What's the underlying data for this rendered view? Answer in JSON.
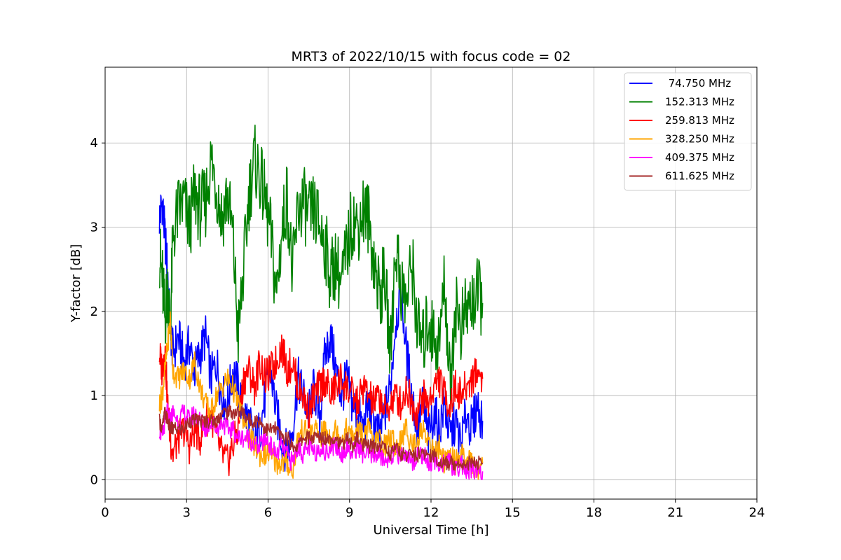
{
  "chart_data": {
    "type": "line",
    "title": "MRT3 of 2022/10/15 with focus code = 02",
    "xlabel": "Universal Time [h]",
    "ylabel": "Y-factor [dB]",
    "xlim": [
      0,
      24
    ],
    "ylim": [
      -0.23,
      4.9
    ],
    "xticks": [
      0,
      3,
      6,
      9,
      12,
      15,
      18,
      21,
      24
    ],
    "yticks": [
      0,
      1,
      2,
      3,
      4
    ],
    "grid": true,
    "legend_position": "top-right",
    "series": [
      {
        "name": " 74.750 MHz",
        "color": "#0000ff",
        "x": [
          2.0,
          2.1,
          2.2,
          2.3,
          2.4,
          2.5,
          2.7,
          2.9,
          3.1,
          3.3,
          3.5,
          3.7,
          3.9,
          4.1,
          4.3,
          4.5,
          4.7,
          4.9,
          5.1,
          5.3,
          5.5,
          5.7,
          5.9,
          6.1,
          6.3,
          6.5,
          6.7,
          6.9,
          7.1,
          7.3,
          7.5,
          7.7,
          7.9,
          8.1,
          8.3,
          8.5,
          8.7,
          8.9,
          9.1,
          9.3,
          9.5,
          9.7,
          9.9,
          10.1,
          10.3,
          10.5,
          10.7,
          10.9,
          11.1,
          11.3,
          11.5,
          11.7,
          11.9,
          12.1,
          12.3,
          12.5,
          12.7,
          12.9,
          13.1,
          13.3,
          13.5,
          13.7,
          13.9
        ],
        "y": [
          3.1,
          3.3,
          2.9,
          2.5,
          1.8,
          1.5,
          1.7,
          1.4,
          1.6,
          1.3,
          1.5,
          1.7,
          1.2,
          1.4,
          1.0,
          0.9,
          1.3,
          1.1,
          0.8,
          0.7,
          0.4,
          0.6,
          1.0,
          1.3,
          0.8,
          0.5,
          0.3,
          0.6,
          1.2,
          1.0,
          0.8,
          1.1,
          0.7,
          1.5,
          1.7,
          1.3,
          1.0,
          1.2,
          0.9,
          0.8,
          0.6,
          0.9,
          0.7,
          0.5,
          0.8,
          1.1,
          1.9,
          2.2,
          1.5,
          1.0,
          0.6,
          0.9,
          0.5,
          0.8,
          0.6,
          0.9,
          0.5,
          0.7,
          0.4,
          0.8,
          0.6,
          0.9,
          0.7
        ]
      },
      {
        "name": "152.313 MHz",
        "color": "#008000",
        "x": [
          2.0,
          2.1,
          2.2,
          2.3,
          2.4,
          2.5,
          2.7,
          2.9,
          3.1,
          3.3,
          3.5,
          3.7,
          3.9,
          4.1,
          4.3,
          4.5,
          4.7,
          4.9,
          5.1,
          5.3,
          5.5,
          5.7,
          5.9,
          6.1,
          6.3,
          6.5,
          6.7,
          6.9,
          7.1,
          7.3,
          7.5,
          7.7,
          7.9,
          8.1,
          8.3,
          8.5,
          8.7,
          8.9,
          9.1,
          9.3,
          9.5,
          9.7,
          9.9,
          10.1,
          10.3,
          10.5,
          10.7,
          10.9,
          11.1,
          11.3,
          11.5,
          11.7,
          11.9,
          12.1,
          12.3,
          12.5,
          12.7,
          12.9,
          13.1,
          13.3,
          13.5,
          13.7,
          13.9
        ],
        "y": [
          2.7,
          2.4,
          1.9,
          2.3,
          1.8,
          2.9,
          3.2,
          3.3,
          3.0,
          3.4,
          3.2,
          3.3,
          3.8,
          3.5,
          3.1,
          3.4,
          2.9,
          1.7,
          2.5,
          3.4,
          3.8,
          3.6,
          3.3,
          2.9,
          2.2,
          2.9,
          3.4,
          2.4,
          3.2,
          3.3,
          3.1,
          3.2,
          3.0,
          2.8,
          2.4,
          2.6,
          2.3,
          2.7,
          3.1,
          3.0,
          3.2,
          3.1,
          2.6,
          2.2,
          2.4,
          1.5,
          2.8,
          2.3,
          2.1,
          2.6,
          1.8,
          1.6,
          1.9,
          1.7,
          1.6,
          2.4,
          1.1,
          2.1,
          1.8,
          2.0,
          2.1,
          2.2,
          2.1
        ]
      },
      {
        "name": "259.813 MHz",
        "color": "#ff0000",
        "x": [
          2.0,
          2.1,
          2.2,
          2.3,
          2.4,
          2.5,
          2.7,
          2.9,
          3.1,
          3.3,
          3.5,
          3.7,
          3.9,
          4.1,
          4.3,
          4.5,
          4.7,
          4.9,
          5.1,
          5.3,
          5.5,
          5.7,
          5.9,
          6.1,
          6.3,
          6.5,
          6.7,
          6.9,
          7.1,
          7.3,
          7.5,
          7.7,
          7.9,
          8.1,
          8.3,
          8.5,
          8.7,
          8.9,
          9.1,
          9.3,
          9.5,
          9.7,
          9.9,
          10.1,
          10.3,
          10.5,
          10.7,
          10.9,
          11.1,
          11.3,
          11.5,
          11.7,
          11.9,
          12.1,
          12.3,
          12.5,
          12.7,
          12.9,
          13.1,
          13.3,
          13.5,
          13.7,
          13.9
        ],
        "y": [
          1.5,
          1.3,
          1.6,
          0.9,
          0.5,
          0.3,
          0.5,
          0.6,
          0.4,
          0.6,
          0.5,
          0.7,
          0.8,
          0.5,
          0.3,
          0.2,
          0.4,
          0.6,
          1.2,
          1.3,
          1.1,
          1.4,
          1.2,
          1.3,
          1.4,
          1.6,
          1.3,
          1.4,
          1.1,
          1.0,
          0.8,
          1.0,
          1.1,
          1.2,
          1.0,
          1.1,
          1.2,
          1.1,
          1.0,
          0.9,
          1.1,
          1.0,
          0.9,
          1.0,
          0.8,
          0.9,
          1.0,
          0.9,
          1.1,
          0.9,
          0.8,
          1.0,
          0.9,
          1.1,
          1.2,
          1.0,
          0.9,
          1.1,
          1.0,
          1.1,
          1.2,
          1.3,
          1.2
        ]
      },
      {
        "name": "328.250 MHz",
        "color": "#ffa500",
        "x": [
          2.0,
          2.1,
          2.2,
          2.3,
          2.4,
          2.5,
          2.7,
          2.9,
          3.1,
          3.3,
          3.5,
          3.7,
          3.9,
          4.1,
          4.3,
          4.5,
          4.7,
          4.9,
          5.1,
          5.3,
          5.5,
          5.7,
          5.9,
          6.1,
          6.3,
          6.5,
          6.7,
          6.9,
          7.1,
          7.3,
          7.5,
          7.7,
          7.9,
          8.1,
          8.3,
          8.5,
          8.7,
          8.9,
          9.1,
          9.3,
          9.5,
          9.7,
          9.9,
          10.1,
          10.3,
          10.5,
          10.7,
          10.9,
          11.1,
          11.3,
          11.5,
          11.7,
          11.9,
          12.1,
          12.3,
          12.5,
          12.7,
          12.9,
          13.1,
          13.3,
          13.5,
          13.7,
          13.9
        ],
        "y": [
          0.9,
          1.0,
          1.3,
          1.6,
          1.9,
          1.3,
          1.2,
          1.3,
          1.2,
          1.4,
          1.1,
          0.9,
          0.8,
          1.0,
          1.1,
          1.2,
          1.1,
          0.9,
          0.7,
          0.5,
          0.4,
          0.3,
          0.3,
          0.3,
          0.2,
          0.2,
          0.2,
          0.1,
          0.5,
          0.6,
          0.5,
          0.6,
          0.5,
          0.6,
          0.5,
          0.6,
          0.5,
          0.6,
          0.5,
          0.6,
          0.5,
          0.6,
          0.4,
          0.5,
          0.4,
          0.5,
          0.4,
          0.5,
          0.6,
          0.4,
          0.5,
          0.6,
          0.5,
          0.3,
          0.4,
          0.2,
          0.3,
          0.2,
          0.3,
          0.2,
          0.2,
          0.1,
          0.2
        ]
      },
      {
        "name": "409.375 MHz",
        "color": "#ff00ff",
        "x": [
          2.0,
          2.1,
          2.2,
          2.3,
          2.4,
          2.5,
          2.7,
          2.9,
          3.1,
          3.3,
          3.5,
          3.7,
          3.9,
          4.1,
          4.3,
          4.5,
          4.7,
          4.9,
          5.1,
          5.3,
          5.5,
          5.7,
          5.9,
          6.1,
          6.3,
          6.5,
          6.7,
          6.9,
          7.1,
          7.3,
          7.5,
          7.7,
          7.9,
          8.1,
          8.3,
          8.5,
          8.7,
          8.9,
          9.1,
          9.3,
          9.5,
          9.7,
          9.9,
          10.1,
          10.3,
          10.5,
          10.7,
          10.9,
          11.1,
          11.3,
          11.5,
          11.7,
          11.9,
          12.1,
          12.3,
          12.5,
          12.7,
          12.9,
          13.1,
          13.3,
          13.5,
          13.7,
          13.9
        ],
        "y": [
          0.6,
          0.5,
          0.7,
          0.8,
          0.7,
          0.8,
          0.7,
          0.8,
          0.7,
          0.8,
          0.7,
          0.6,
          0.7,
          0.6,
          0.7,
          0.6,
          0.6,
          0.5,
          0.5,
          0.5,
          0.4,
          0.4,
          0.5,
          0.4,
          0.3,
          0.4,
          0.3,
          0.2,
          0.4,
          0.3,
          0.4,
          0.3,
          0.4,
          0.3,
          0.4,
          0.4,
          0.3,
          0.4,
          0.3,
          0.4,
          0.3,
          0.3,
          0.3,
          0.3,
          0.2,
          0.3,
          0.3,
          0.3,
          0.3,
          0.2,
          0.3,
          0.3,
          0.2,
          0.2,
          0.2,
          0.2,
          0.2,
          0.1,
          0.2,
          0.1,
          0.1,
          0.1,
          0.1
        ]
      },
      {
        "name": "611.625 MHz",
        "color": "#a52a2a",
        "x": [
          2.0,
          2.1,
          2.2,
          2.3,
          2.4,
          2.5,
          2.7,
          2.9,
          3.1,
          3.3,
          3.5,
          3.7,
          3.9,
          4.1,
          4.3,
          4.5,
          4.7,
          4.9,
          5.1,
          5.3,
          5.5,
          5.7,
          5.9,
          6.1,
          6.3,
          6.5,
          6.7,
          6.9,
          7.1,
          7.3,
          7.5,
          7.7,
          7.9,
          8.1,
          8.3,
          8.5,
          8.7,
          8.9,
          9.1,
          9.3,
          9.5,
          9.7,
          9.9,
          10.1,
          10.3,
          10.5,
          10.7,
          10.9,
          11.1,
          11.3,
          11.5,
          11.7,
          11.9,
          12.1,
          12.3,
          12.5,
          12.7,
          12.9,
          13.1,
          13.3,
          13.5,
          13.7,
          13.9
        ],
        "y": [
          0.7,
          0.6,
          0.8,
          0.7,
          0.6,
          0.6,
          0.6,
          0.6,
          0.7,
          0.7,
          0.7,
          0.7,
          0.7,
          0.7,
          0.8,
          0.8,
          0.8,
          0.8,
          0.8,
          0.7,
          0.7,
          0.7,
          0.6,
          0.6,
          0.6,
          0.5,
          0.5,
          0.4,
          0.4,
          0.5,
          0.5,
          0.5,
          0.5,
          0.5,
          0.5,
          0.5,
          0.4,
          0.5,
          0.4,
          0.5,
          0.4,
          0.4,
          0.4,
          0.4,
          0.4,
          0.3,
          0.4,
          0.3,
          0.3,
          0.3,
          0.3,
          0.3,
          0.3,
          0.3,
          0.2,
          0.2,
          0.2,
          0.2,
          0.2,
          0.2,
          0.2,
          0.2,
          0.2
        ]
      }
    ]
  }
}
